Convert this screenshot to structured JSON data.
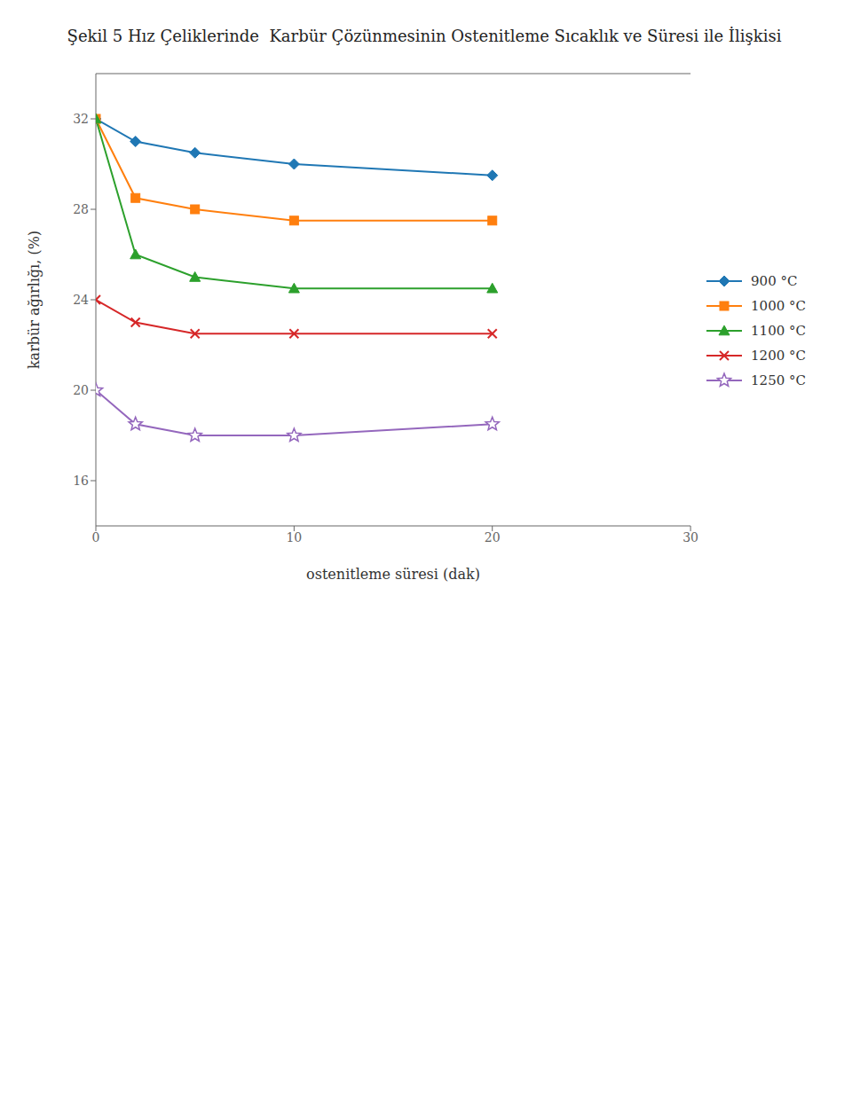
{
  "chart_data": {
    "type": "line",
    "title": "Şekil 5 Hız Çeliklerinde  Karbür Çözünmesinin Ostenitleme Sıcaklık ve Süresi ile İlişkisi",
    "xlabel": "ostenitleme süresi  (dak)",
    "ylabel": "karbür ağırlığı, (%)",
    "xlim": [
      0,
      30
    ],
    "ylim": [
      14,
      34
    ],
    "xticks": [
      0,
      10,
      20,
      30
    ],
    "yticks": [
      16,
      20,
      24,
      28,
      32
    ],
    "grid": false,
    "legend": "right",
    "series": [
      {
        "name": "900 °C",
        "color": "#1f77b4",
        "marker": "diamond",
        "x": [
          0,
          2,
          5,
          10,
          20
        ],
        "values": [
          32.0,
          31.0,
          30.5,
          30.0,
          29.5
        ]
      },
      {
        "name": "1000 °C",
        "color": "#ff7f0e",
        "marker": "square",
        "x": [
          0,
          2,
          5,
          10,
          20
        ],
        "values": [
          32.0,
          28.5,
          28.0,
          27.5,
          27.5
        ]
      },
      {
        "name": "1100 °C",
        "color": "#2ca02c",
        "marker": "triangle",
        "x": [
          0,
          2,
          5,
          10,
          20
        ],
        "values": [
          32.0,
          26.0,
          25.0,
          24.5,
          24.5
        ]
      },
      {
        "name": "1200 °C",
        "color": "#d62728",
        "marker": "x",
        "x": [
          0,
          2,
          5,
          10,
          20
        ],
        "values": [
          24.0,
          23.0,
          22.5,
          22.5,
          22.5
        ]
      },
      {
        "name": "1250 °C",
        "color": "#9467bd",
        "marker": "star",
        "x": [
          0,
          2,
          5,
          10,
          20
        ],
        "values": [
          20.0,
          18.5,
          18.0,
          18.0,
          18.5
        ]
      }
    ]
  }
}
